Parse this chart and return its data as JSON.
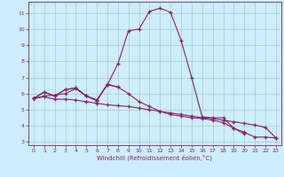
{
  "xlabel": "Windchill (Refroidissement éolien,°C)",
  "background_color": "#cceeff",
  "grid_color": "#aaccbb",
  "line_color": "#882266",
  "xlim": [
    -0.5,
    23.5
  ],
  "ylim": [
    2.8,
    11.7
  ],
  "xticks": [
    0,
    1,
    2,
    3,
    4,
    5,
    6,
    7,
    8,
    9,
    10,
    11,
    12,
    13,
    14,
    15,
    16,
    17,
    18,
    19,
    20,
    21,
    22,
    23
  ],
  "yticks": [
    3,
    4,
    5,
    6,
    7,
    8,
    9,
    10,
    11
  ],
  "line1_x": [
    0,
    1,
    2,
    3,
    4,
    5,
    6,
    7,
    8,
    9,
    10,
    11,
    12,
    13,
    14,
    15,
    16,
    17,
    18,
    19,
    20,
    21,
    22,
    23
  ],
  "line1_y": [
    5.7,
    6.1,
    5.85,
    6.25,
    6.35,
    5.85,
    5.6,
    6.55,
    7.85,
    9.9,
    10.0,
    11.1,
    11.3,
    11.05,
    9.3,
    7.0,
    4.55,
    4.5,
    4.5,
    3.85,
    3.6,
    3.3,
    3.3,
    3.25
  ],
  "line2_x": [
    0,
    1,
    2,
    3,
    4,
    5,
    6,
    7,
    8,
    9,
    10,
    11,
    12,
    13,
    14,
    15,
    16,
    17,
    18,
    19,
    20,
    21,
    22,
    23
  ],
  "line2_y": [
    5.7,
    5.8,
    5.65,
    5.65,
    5.6,
    5.5,
    5.4,
    5.3,
    5.25,
    5.2,
    5.1,
    5.0,
    4.9,
    4.8,
    4.7,
    4.6,
    4.5,
    4.45,
    4.35,
    4.25,
    4.15,
    4.05,
    3.9,
    3.25
  ],
  "line3_x": [
    0,
    1,
    2,
    3,
    4,
    5,
    6,
    7,
    8,
    9,
    10,
    11,
    12,
    13,
    14,
    15,
    16,
    17,
    18,
    19,
    20
  ],
  "line3_y": [
    5.7,
    6.1,
    5.85,
    6.25,
    6.35,
    5.85,
    5.6,
    6.55,
    6.4,
    6.0,
    5.5,
    5.2,
    4.9,
    4.7,
    4.6,
    4.5,
    4.45,
    4.35,
    4.2,
    3.85,
    3.5
  ],
  "line4_x": [
    0,
    1,
    2,
    3,
    4,
    5,
    6,
    7,
    8
  ],
  "line4_y": [
    5.7,
    5.85,
    5.9,
    6.0,
    6.3,
    5.85,
    5.55,
    6.6,
    6.4
  ]
}
